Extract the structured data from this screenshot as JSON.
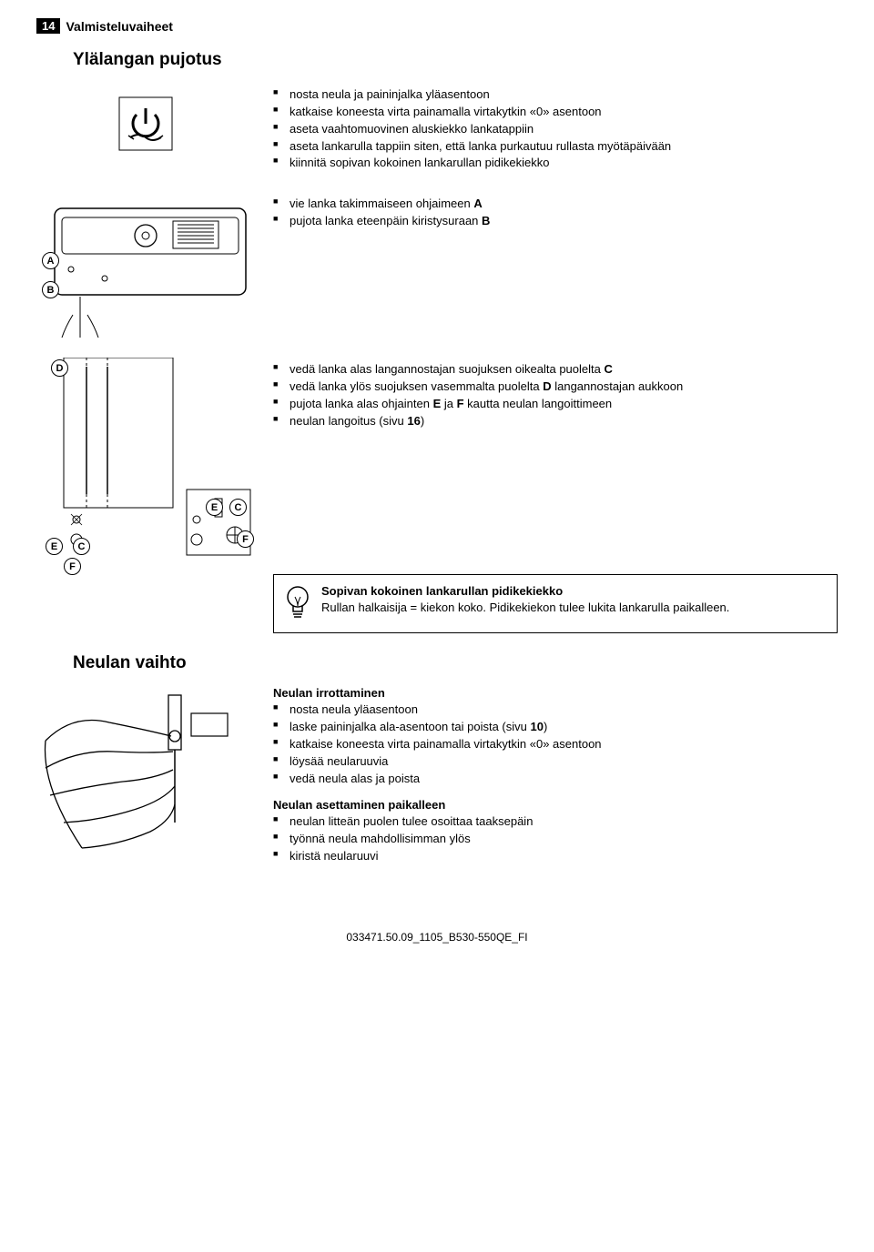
{
  "header": {
    "page_num": "14",
    "title": "Valmisteluvaiheet"
  },
  "section1": {
    "title": "Ylälangan pujotus",
    "block1": {
      "items": [
        "nosta neula ja paininjalka yläasentoon",
        "katkaise koneesta virta painamalla virtakytkin «0» asentoon",
        "aseta vaahtomuovinen aluskiekko lankatappiin",
        "aseta lankarulla tappiin siten, että lanka purkautuu rullasta myötäpäivään",
        "kiinnitä sopivan kokoinen lankarullan pidikekiekko"
      ]
    },
    "block2": {
      "items": [
        "vie lanka takimmaiseen ohjaimeen A",
        "pujota lanka eteenpäin kiristysuraan B"
      ],
      "labels": {
        "A": "A",
        "B": "B"
      }
    },
    "block3": {
      "items": [
        "vedä lanka alas langannostajan suojuksen oikealta puolelta C",
        "vedä lanka ylös suojuksen vasemmalta puolelta D langannostajan aukkoon",
        "pujota lanka alas ohjainten E ja F kautta neulan langoittimeen",
        "neulan langoitus (sivu 16)"
      ],
      "labels": {
        "D": "D",
        "E": "E",
        "C": "C",
        "F": "F"
      }
    },
    "tip": {
      "title": "Sopivan kokoinen lankarullan pidikekiekko",
      "body": "Rullan halkaisija = kiekon koko. Pidikekiekon tulee lukita lankarulla paikalleen."
    }
  },
  "section2": {
    "title": "Neulan vaihto",
    "group1": {
      "heading": "Neulan irrottaminen",
      "items": [
        "nosta neula yläasentoon",
        "laske paininjalka ala-asentoon tai poista (sivu 10)",
        "katkaise koneesta virta painamalla virtakytkin «0» asentoon",
        "löysää neularuuvia",
        "vedä neula alas ja poista"
      ]
    },
    "group2": {
      "heading": "Neulan asettaminen paikalleen",
      "items": [
        "neulan litteän puolen tulee osoittaa taaksepäin",
        "työnnä neula mahdollisimman ylös",
        "kiristä neularuuvi"
      ]
    }
  },
  "footer": "033471.50.09_1105_B530-550QE_FI"
}
